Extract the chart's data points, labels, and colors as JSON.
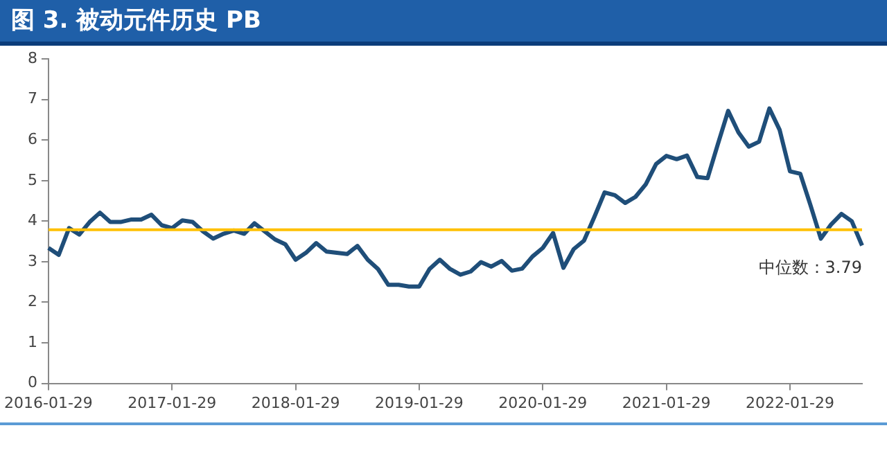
{
  "chart_data": {
    "type": "line",
    "title": "图 3. 被动元件历史 PB",
    "categories": [
      "2016-01-29",
      null,
      null,
      null,
      null,
      null,
      null,
      null,
      null,
      null,
      null,
      null,
      "2017-01-29",
      null,
      null,
      null,
      null,
      null,
      null,
      null,
      null,
      null,
      null,
      null,
      "2018-01-29",
      null,
      null,
      null,
      null,
      null,
      null,
      null,
      null,
      null,
      null,
      null,
      "2019-01-29",
      null,
      null,
      null,
      null,
      null,
      null,
      null,
      null,
      null,
      null,
      null,
      "2020-01-29",
      null,
      null,
      null,
      null,
      null,
      null,
      null,
      null,
      null,
      null,
      null,
      "2021-01-29",
      null,
      null,
      null,
      null,
      null,
      null,
      null,
      null,
      null,
      null,
      null,
      "2022-01-29",
      null,
      null,
      null,
      null,
      null,
      null,
      null
    ],
    "series": [
      {
        "color": "#1f4e79",
        "values": [
          3.34,
          3.17,
          3.83,
          3.67,
          3.98,
          4.21,
          3.98,
          3.98,
          4.04,
          4.04,
          4.16,
          3.9,
          3.83,
          4.02,
          3.98,
          3.75,
          3.57,
          3.69,
          3.77,
          3.69,
          3.95,
          3.75,
          3.55,
          3.43,
          3.05,
          3.22,
          3.46,
          3.25,
          3.22,
          3.19,
          3.39,
          3.05,
          2.82,
          2.43,
          2.43,
          2.39,
          2.39,
          2.82,
          3.05,
          2.82,
          2.68,
          2.76,
          2.99,
          2.88,
          3.02,
          2.78,
          2.83,
          3.13,
          3.34,
          3.71,
          2.85,
          3.31,
          3.52,
          4.1,
          4.71,
          4.64,
          4.45,
          4.6,
          4.91,
          5.41,
          5.61,
          5.53,
          5.62,
          5.09,
          5.06,
          5.9,
          6.72,
          6.19,
          5.84,
          5.96,
          6.78,
          6.25,
          5.23,
          5.17,
          4.39,
          3.57,
          3.92,
          4.18,
          4.0,
          3.4
        ]
      }
    ],
    "ylim": [
      0,
      8
    ],
    "yticks": [
      0,
      1,
      2,
      3,
      4,
      5,
      6,
      7,
      8
    ],
    "grid": false,
    "legend": false,
    "marker": "none",
    "line_style": "solid",
    "ref_lines": [
      {
        "axis": "y",
        "value": 3.79,
        "label": "中位数：3.79",
        "color": "#ffc000"
      }
    ]
  }
}
